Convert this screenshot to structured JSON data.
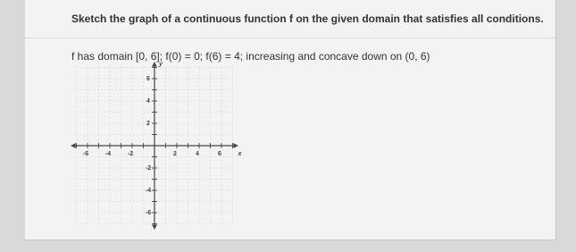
{
  "question": {
    "title": "Sketch the graph of a continuous function f on the given domain that satisfies all conditions.",
    "conditions": "f has domain [0, 6]; f(0) = 0; f(6) = 4; increasing and concave down on (0, 6)"
  },
  "graph": {
    "x_label": "x",
    "y_label": "y",
    "x_ticks": [
      "-6",
      "-4",
      "-2",
      "2",
      "4",
      "6"
    ],
    "y_ticks": [
      "6",
      "4",
      "2",
      "-2",
      "-4",
      "-6"
    ]
  }
}
